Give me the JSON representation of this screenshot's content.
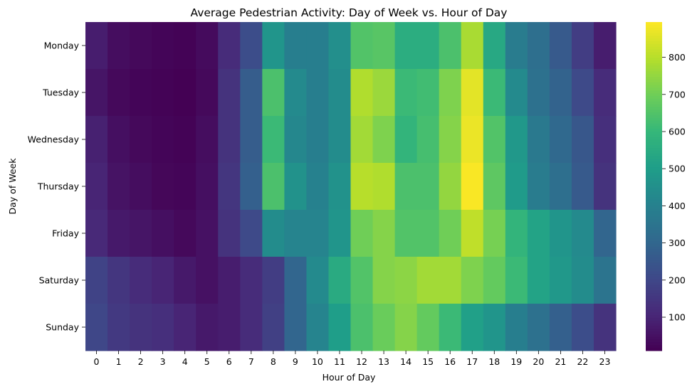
{
  "chart_data": {
    "type": "heatmap",
    "title": "Average Pedestrian Activity: Day of Week vs. Hour of Day",
    "xlabel": "Hour of Day",
    "ylabel": "Day of Week",
    "x": [
      "0",
      "1",
      "2",
      "3",
      "4",
      "5",
      "6",
      "7",
      "8",
      "9",
      "10",
      "11",
      "12",
      "13",
      "14",
      "15",
      "16",
      "17",
      "18",
      "19",
      "20",
      "21",
      "22",
      "23"
    ],
    "y": [
      "Monday",
      "Tuesday",
      "Wednesday",
      "Thursday",
      "Friday",
      "Saturday",
      "Sunday"
    ],
    "values": [
      [
        80,
        40,
        30,
        20,
        15,
        35,
        120,
        220,
        470,
        390,
        390,
        450,
        650,
        660,
        560,
        560,
        640,
        780,
        540,
        380,
        330,
        260,
        170,
        80
      ],
      [
        60,
        30,
        20,
        15,
        10,
        30,
        140,
        270,
        640,
        430,
        390,
        440,
        790,
        760,
        610,
        620,
        720,
        860,
        610,
        430,
        340,
        290,
        210,
        120
      ],
      [
        90,
        45,
        30,
        20,
        15,
        40,
        140,
        270,
        610,
        420,
        390,
        440,
        770,
        720,
        590,
        630,
        730,
        870,
        650,
        480,
        370,
        310,
        250,
        130
      ],
      [
        100,
        55,
        40,
        25,
        20,
        45,
        150,
        280,
        640,
        460,
        400,
        460,
        800,
        790,
        640,
        640,
        750,
        890,
        670,
        490,
        380,
        330,
        260,
        140
      ],
      [
        110,
        70,
        60,
        45,
        30,
        50,
        140,
        210,
        440,
        410,
        410,
        470,
        700,
        730,
        650,
        650,
        700,
        810,
        710,
        590,
        520,
        470,
        430,
        300
      ],
      [
        190,
        150,
        120,
        100,
        70,
        50,
        80,
        120,
        170,
        300,
        430,
        550,
        650,
        730,
        740,
        770,
        770,
        720,
        680,
        610,
        520,
        480,
        440,
        350
      ],
      [
        200,
        160,
        140,
        130,
        100,
        70,
        80,
        120,
        180,
        300,
        410,
        500,
        640,
        690,
        730,
        680,
        610,
        510,
        470,
        390,
        340,
        280,
        220,
        140
      ]
    ],
    "colorscale": "viridis",
    "zlim": [
      10,
      895
    ],
    "colorbar_ticks": [
      100,
      200,
      300,
      400,
      500,
      600,
      700,
      800
    ]
  }
}
